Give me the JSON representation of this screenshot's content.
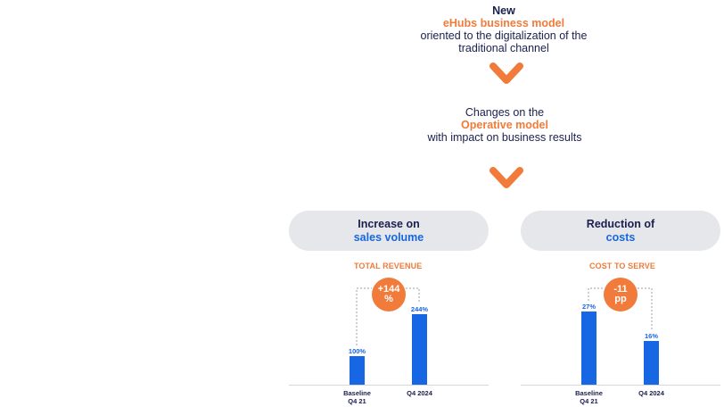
{
  "top": {
    "line1": "New",
    "line2": "eHubs business model",
    "line3": "oriented to the digitalization of the",
    "line4": "traditional channel"
  },
  "middle": {
    "line1": "Changes on the",
    "line2": "Operative model",
    "line3": "with impact on business results"
  },
  "left_panel": {
    "pill_line1": "Increase on",
    "pill_line2": "sales volume",
    "section": "TOTAL REVENUE",
    "badge_line1": "+144",
    "badge_line2": "%"
  },
  "right_panel": {
    "pill_line1": "Reduction of",
    "pill_line2": "costs",
    "section": "COST TO SERVE",
    "badge_line1": "-11",
    "badge_line2": "pp"
  },
  "chart_data": [
    {
      "type": "bar",
      "title": "TOTAL REVENUE",
      "categories": [
        "Baseline\nQ4 21",
        "Q4 2024"
      ],
      "values": [
        100,
        244
      ],
      "value_labels": [
        "100%",
        "244%"
      ],
      "annotation": "+144 %"
    },
    {
      "type": "bar",
      "title": "COST TO SERVE",
      "categories": [
        "Baseline\nQ4 21",
        "Q4 2024"
      ],
      "values": [
        27,
        16
      ],
      "value_labels": [
        "27%",
        "16%"
      ],
      "annotation": "-11 pp"
    }
  ],
  "colors": {
    "navy": "#1a1f4e",
    "orange": "#f07b3a",
    "blue": "#1766e3",
    "pill_bg": "#e6e7ea"
  }
}
